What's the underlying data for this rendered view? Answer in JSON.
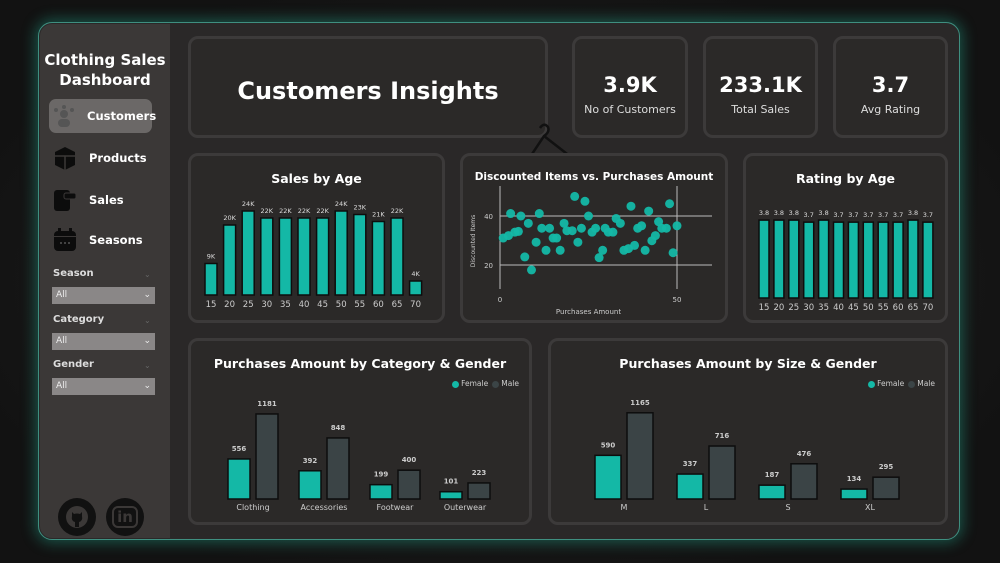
{
  "sidebar": {
    "title_line1": "Clothing Sales",
    "title_line2": "Dashboard",
    "nav": [
      {
        "label": "Customers",
        "icon": "customers-icon",
        "active": true
      },
      {
        "label": "Products",
        "icon": "box-icon"
      },
      {
        "label": "Sales",
        "icon": "sales-icon"
      },
      {
        "label": "Seasons",
        "icon": "calendar-icon"
      }
    ],
    "filters": [
      {
        "label": "Season",
        "value": "All"
      },
      {
        "label": "Category",
        "value": "All"
      },
      {
        "label": "Gender",
        "value": "All"
      }
    ],
    "social": [
      {
        "icon": "github-icon"
      },
      {
        "icon": "linkedin-icon",
        "text": "in"
      }
    ]
  },
  "header": {
    "title": "Customers Insights"
  },
  "kpis": [
    {
      "value": "3.9K",
      "label": "No of Customers"
    },
    {
      "value": "233.1K",
      "label": "Total Sales"
    },
    {
      "value": "3.7",
      "label": "Avg Rating"
    }
  ],
  "colors": {
    "accent": "#14b8a6",
    "male": "#3b4446",
    "card": "#2b2928"
  },
  "chart_data": [
    {
      "type": "bar",
      "title": "Sales by Age",
      "categories": [
        "15",
        "20",
        "25",
        "30",
        "35",
        "40",
        "45",
        "50",
        "55",
        "60",
        "65",
        "70"
      ],
      "values": [
        9,
        20,
        24,
        22,
        22,
        22,
        22,
        24,
        23,
        21,
        22,
        4
      ],
      "labels": [
        "9K",
        "20K",
        "24K",
        "22K",
        "22K",
        "22K",
        "22K",
        "24K",
        "23K",
        "21K",
        "22K",
        "4K"
      ]
    },
    {
      "type": "scatter",
      "title": "Discounted Items vs. Purchases Amount",
      "xlabel": "Purchases Amount",
      "ylabel": "Discounted Items",
      "xticks": [
        "0",
        "50"
      ],
      "yticks": [
        "20",
        "40"
      ],
      "xlim": [
        0,
        50
      ],
      "grid": true,
      "points": [
        [
          0.9,
          31
        ],
        [
          2.4,
          32
        ],
        [
          3,
          41
        ],
        [
          4.2,
          33.4
        ],
        [
          5.2,
          33.7
        ],
        [
          5.9,
          40
        ],
        [
          8,
          37
        ],
        [
          7,
          23.3
        ],
        [
          8.9,
          18
        ],
        [
          10.2,
          29.3
        ],
        [
          11.1,
          41
        ],
        [
          11.8,
          35
        ],
        [
          13,
          26
        ],
        [
          14,
          35
        ],
        [
          15,
          31
        ],
        [
          16,
          31
        ],
        [
          17,
          26
        ],
        [
          18.1,
          37
        ],
        [
          18.9,
          34
        ],
        [
          20.4,
          34
        ],
        [
          21.1,
          48
        ],
        [
          22,
          29.3
        ],
        [
          23,
          35
        ],
        [
          24,
          46
        ],
        [
          25,
          40
        ],
        [
          26,
          33.4
        ],
        [
          27,
          35
        ],
        [
          28,
          23
        ],
        [
          29,
          26
        ],
        [
          29.7,
          35
        ],
        [
          30.6,
          33.4
        ],
        [
          31.9,
          33.4
        ],
        [
          32.8,
          39
        ],
        [
          34,
          37
        ],
        [
          35,
          26
        ],
        [
          36.3,
          26.7
        ],
        [
          37,
          44
        ],
        [
          38,
          28
        ],
        [
          38.9,
          35
        ],
        [
          40,
          36
        ],
        [
          41,
          26
        ],
        [
          42,
          42
        ],
        [
          42.9,
          29.9
        ],
        [
          43.9,
          32
        ],
        [
          44.8,
          37.7
        ],
        [
          45.7,
          35
        ],
        [
          47,
          35
        ],
        [
          47.9,
          45
        ],
        [
          48.9,
          25
        ],
        [
          50,
          36
        ]
      ]
    },
    {
      "type": "bar",
      "title": "Rating by Age",
      "categories": [
        "15",
        "20",
        "25",
        "30",
        "35",
        "40",
        "45",
        "50",
        "55",
        "60",
        "65",
        "70"
      ],
      "values": [
        3.8,
        3.8,
        3.8,
        3.7,
        3.8,
        3.7,
        3.7,
        3.7,
        3.7,
        3.7,
        3.8,
        3.7
      ],
      "labels": [
        "3.8",
        "3.8",
        "3.8",
        "3.7",
        "3.8",
        "3.7",
        "3.7",
        "3.7",
        "3.7",
        "3.7",
        "3.8",
        "3.7"
      ]
    },
    {
      "type": "bar",
      "title": "Purchases Amount by Category & Gender",
      "categories": [
        "Clothing",
        "Accessories",
        "Footwear",
        "Outerwear"
      ],
      "series": [
        {
          "name": "Female",
          "values": [
            556,
            392,
            199,
            101
          ]
        },
        {
          "name": "Male",
          "values": [
            1181,
            848,
            400,
            223
          ]
        }
      ],
      "legend": "top-right"
    },
    {
      "type": "bar",
      "title": "Purchases Amount by Size & Gender",
      "categories": [
        "M",
        "L",
        "S",
        "XL"
      ],
      "series": [
        {
          "name": "Female",
          "values": [
            590,
            337,
            187,
            134
          ]
        },
        {
          "name": "Male",
          "values": [
            1165,
            716,
            476,
            295
          ]
        }
      ],
      "legend": "top-right"
    }
  ]
}
